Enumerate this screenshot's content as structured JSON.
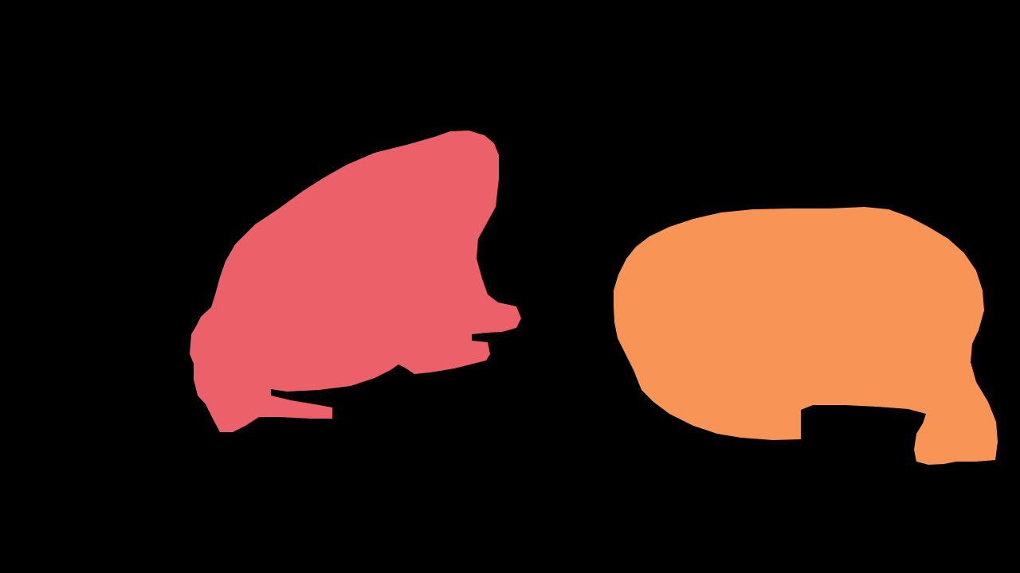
{
  "image": {
    "background": "#000000"
  },
  "regions": [
    {
      "id": "segment-left",
      "color": "#EB6069"
    },
    {
      "id": "segment-right",
      "color": "#F89456"
    }
  ]
}
